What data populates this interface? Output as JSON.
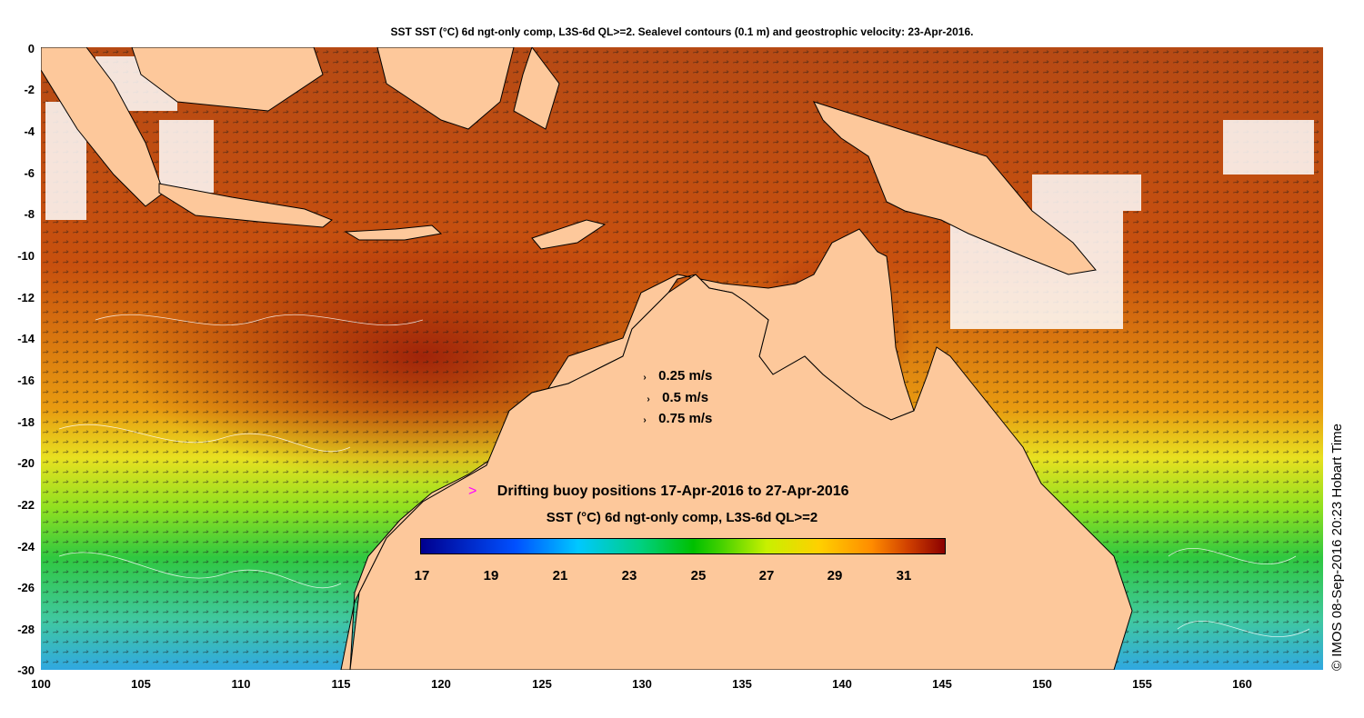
{
  "title": "SST SST (°C) 6d ngt-only comp, L3S-6d QL>=2. Sealevel contours (0.1 m) and geostrophic velocity: 23-Apr-2016.",
  "axes": {
    "y_ticks": [
      "0",
      "-2",
      "-4",
      "-6",
      "-8",
      "-10",
      "-12",
      "-14",
      "-16",
      "-18",
      "-20",
      "-22",
      "-24",
      "-26",
      "-28",
      "-30"
    ],
    "x_ticks": [
      "100",
      "105",
      "110",
      "115",
      "120",
      "125",
      "130",
      "135",
      "140",
      "145",
      "150",
      "155",
      "160"
    ],
    "lat_range": [
      -30,
      0
    ],
    "lon_range": [
      100,
      164
    ]
  },
  "velocity_legend": [
    {
      "label": "0.25 m/s",
      "arrow": "›"
    },
    {
      "label": "0.5 m/s",
      "arrow": "›"
    },
    {
      "label": "0.75 m/s",
      "arrow": "›"
    }
  ],
  "buoy_legend": {
    "marker": ">",
    "label": "Drifting buoy positions 17-Apr-2016 to 27-Apr-2016",
    "marker_color": "#ff00ff"
  },
  "colorbar": {
    "title": "SST (°C) 6d ngt-only comp, L3S-6d QL>=2",
    "ticks": [
      "17",
      "19",
      "21",
      "23",
      "25",
      "27",
      "29",
      "31"
    ],
    "range": [
      17,
      32.2
    ]
  },
  "credit": "© IMOS 08-Sep-2016 20:23 Hobart Time",
  "colors": {
    "land": "#fdc89b",
    "cloud": "#ffffff",
    "warm": "#b83a10",
    "cool": "#20c0e0"
  }
}
